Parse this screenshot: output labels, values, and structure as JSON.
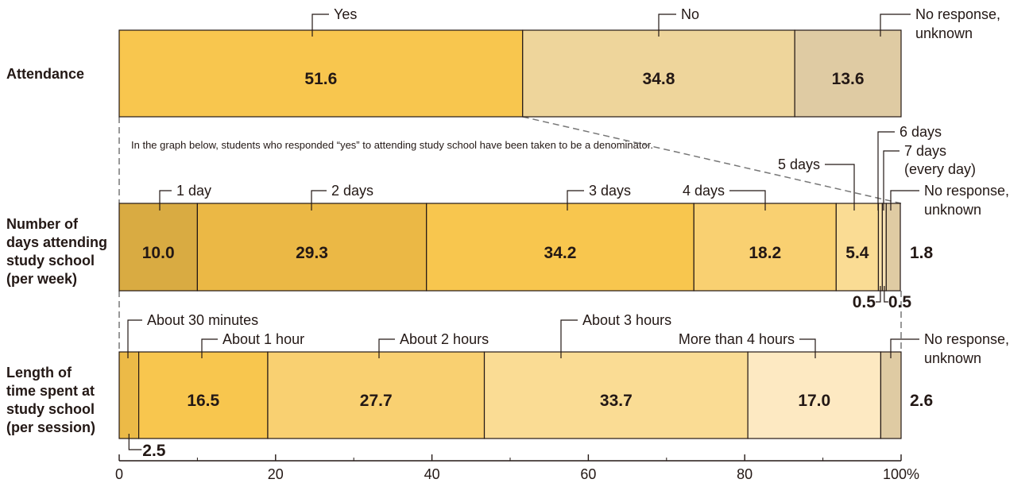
{
  "chart_data": {
    "type": "bar",
    "stacked": true,
    "orientation": "horizontal",
    "xlim": [
      0,
      100
    ],
    "x_ticks": [
      "0",
      "20",
      "40",
      "60",
      "80",
      "100%"
    ],
    "note": "In the graph below, students who responded “yes” to attending study school have been taken to be a denominator.",
    "rows": [
      {
        "label": [
          "Attendance"
        ],
        "segments": [
          {
            "name": [
              "Yes"
            ],
            "value": 51.6,
            "label": "51.6",
            "color": "#f8c64e"
          },
          {
            "name": [
              "No"
            ],
            "value": 34.8,
            "label": "34.8",
            "color": "#eed59b"
          },
          {
            "name": [
              "No response,",
              "unknown"
            ],
            "value": 13.6,
            "label": "13.6",
            "color": "#dfcba3"
          }
        ]
      },
      {
        "label": [
          "Number of",
          "days attending",
          "study school",
          "(per week)"
        ],
        "segments": [
          {
            "name": [
              "1 day"
            ],
            "value": 10.0,
            "label": "10.0",
            "color": "#d9ab42"
          },
          {
            "name": [
              "2 days"
            ],
            "value": 29.3,
            "label": "29.3",
            "color": "#ebb845"
          },
          {
            "name": [
              "3 days"
            ],
            "value": 34.2,
            "label": "34.2",
            "color": "#f8c64e"
          },
          {
            "name": [
              "4 days"
            ],
            "value": 18.2,
            "label": "18.2",
            "color": "#f9d071"
          },
          {
            "name": [
              "5 days"
            ],
            "value": 5.4,
            "label": "5.4",
            "color": "#fadc94"
          },
          {
            "name": [
              "6 days"
            ],
            "value": 0.5,
            "label": "0.5",
            "color": "#fbe4ad"
          },
          {
            "name": [
              "7 days",
              "(every day)"
            ],
            "value": 0.5,
            "label": "0.5",
            "color": "#f4dfb2"
          },
          {
            "name": [
              "No response,",
              "unknown"
            ],
            "value": 1.8,
            "label": "1.8",
            "color": "#dfcba3"
          }
        ]
      },
      {
        "label": [
          "Length of",
          "time spent at",
          "study school",
          "(per session)"
        ],
        "segments": [
          {
            "name": [
              "About 30 minutes"
            ],
            "value": 2.5,
            "label": "2.5",
            "color": "#ecba47"
          },
          {
            "name": [
              "About 1 hour"
            ],
            "value": 16.5,
            "label": "16.5",
            "color": "#f8c64e"
          },
          {
            "name": [
              "About 2 hours"
            ],
            "value": 27.7,
            "label": "27.7",
            "color": "#f9d071"
          },
          {
            "name": [
              "About 3 hours"
            ],
            "value": 33.7,
            "label": "33.7",
            "color": "#fadc94"
          },
          {
            "name": [
              "More than 4 hours"
            ],
            "value": 17.0,
            "label": "17.0",
            "color": "#fde9c2"
          },
          {
            "name": [
              "No response,",
              "unknown"
            ],
            "value": 2.6,
            "label": "2.6",
            "color": "#dfcba3"
          }
        ]
      }
    ]
  }
}
